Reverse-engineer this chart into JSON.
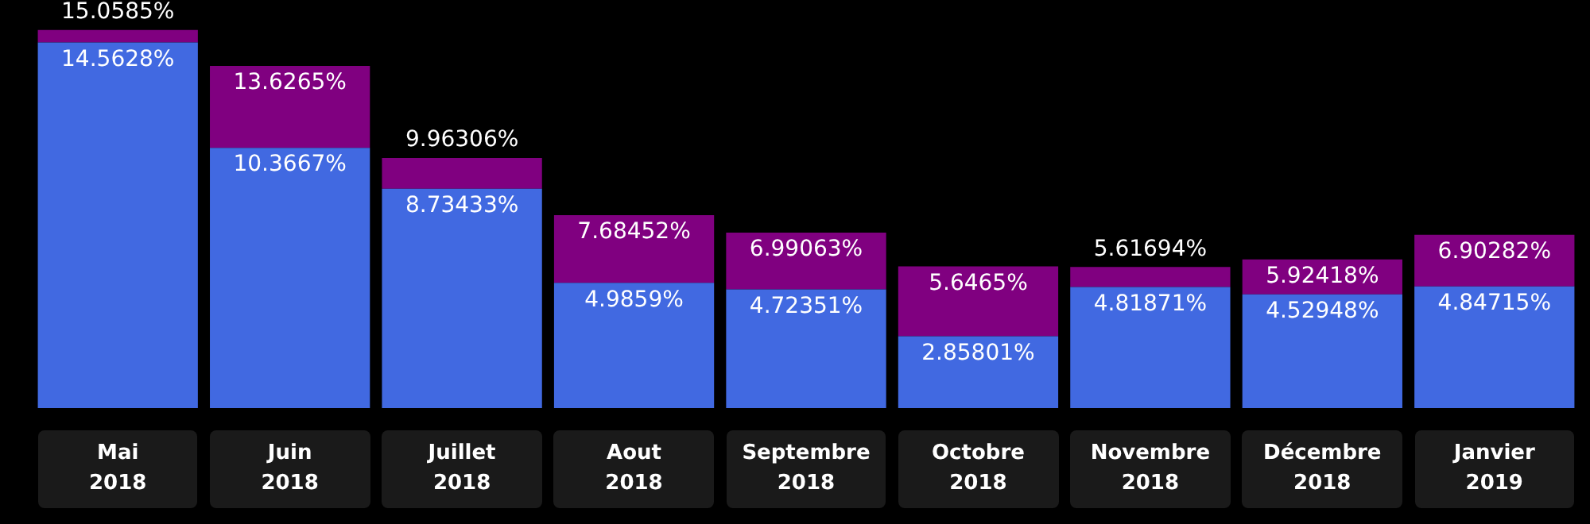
{
  "chart_data": {
    "type": "bar",
    "stacked": true,
    "categories": [
      "Mai 2018",
      "Juin 2018",
      "Juillet 2018",
      "Aout 2018",
      "Septembre 2018",
      "Octobre 2018",
      "Novembre 2018",
      "Décembre 2018",
      "Janvier 2019"
    ],
    "series": [
      {
        "color": "#4169e1",
        "values": [
          14.5628,
          10.3667,
          8.73433,
          4.9859,
          4.72351,
          2.85801,
          4.81871,
          4.52948,
          4.84715
        ],
        "value_labels": [
          "14.5628%",
          "10.3667%",
          "8.73433%",
          "4.9859%",
          "4.72351%",
          "2.85801%",
          "4.81871%",
          "4.52948%",
          "4.84715%"
        ]
      },
      {
        "color": "#800080",
        "values": [
          0.4957,
          3.2598,
          1.22873,
          2.69862,
          2.26712,
          2.78849,
          0.79823,
          1.3947,
          2.05567
        ]
      }
    ],
    "totals": [
      "15.0585%",
      "13.6265%",
      "9.96306%",
      "7.68452%",
      "6.99063%",
      "5.6465%",
      "5.61694%",
      "5.92418%",
      "6.90282%"
    ],
    "legend": false
  }
}
